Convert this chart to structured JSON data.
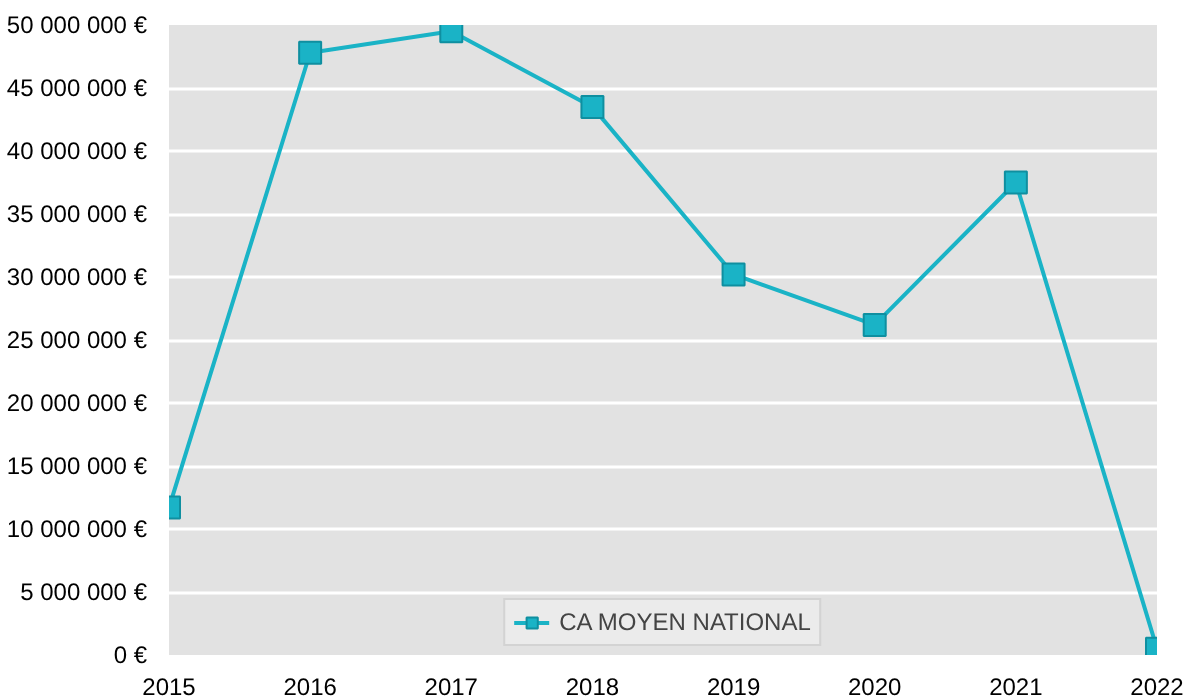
{
  "chart_data": {
    "type": "line",
    "x": [
      2015,
      2016,
      2017,
      2018,
      2019,
      2020,
      2021,
      2022
    ],
    "series": [
      {
        "name": "CA MOYEN NATIONAL",
        "color": "#1ab3c6",
        "values": [
          11700000,
          47800000,
          49500000,
          43500000,
          30200000,
          26200000,
          37500000,
          500000
        ]
      }
    ],
    "xlim": [
      2015,
      2022
    ],
    "xticks": [
      2015,
      2016,
      2017,
      2018,
      2019,
      2020,
      2021,
      2022
    ],
    "ylim": [
      0,
      50000000
    ],
    "yticks": [
      {
        "value": 0,
        "label": "0 €"
      },
      {
        "value": 5000000,
        "label": "5 000 000 €"
      },
      {
        "value": 10000000,
        "label": "10 000 000 €"
      },
      {
        "value": 15000000,
        "label": "15 000 000 €"
      },
      {
        "value": 20000000,
        "label": "20 000 000 €"
      },
      {
        "value": 25000000,
        "label": "25 000 000 €"
      },
      {
        "value": 30000000,
        "label": "30 000 000 €"
      },
      {
        "value": 35000000,
        "label": "35 000 000 €"
      },
      {
        "value": 40000000,
        "label": "40 000 000 €"
      },
      {
        "value": 45000000,
        "label": "45 000 000 €"
      },
      {
        "value": 50000000,
        "label": "50 000 000 €"
      }
    ],
    "grid": "y",
    "legend": "bottom center",
    "marker": "square",
    "line_style": "solid"
  }
}
